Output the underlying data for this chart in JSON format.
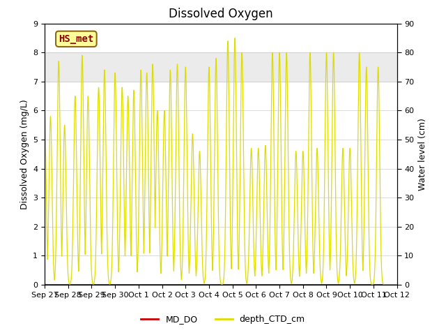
{
  "title": "Dissolved Oxygen",
  "ylabel_left": "Dissolved Oxygen (mg/L)",
  "ylabel_right": "Water level (cm)",
  "ylim_left": [
    0.0,
    9.0
  ],
  "ylim_right": [
    0,
    90
  ],
  "yticks_left": [
    0.0,
    1.0,
    2.0,
    3.0,
    4.0,
    5.0,
    6.0,
    7.0,
    8.0,
    9.0
  ],
  "yticks_right": [
    0,
    10,
    20,
    30,
    40,
    50,
    60,
    70,
    80,
    90
  ],
  "shade_band_low": 7.0,
  "shade_band_high": 8.0,
  "band_color": "#d8d8d8",
  "band_alpha": 0.5,
  "line_color_do": "#cc0000",
  "line_color_depth": "#dddd00",
  "legend_label_do": "MD_DO",
  "legend_label_depth": "depth_CTD_cm",
  "annotation_text": "HS_met",
  "annotation_color": "#8b0000",
  "annotation_bg": "#ffff99",
  "annotation_border": "#8b6914",
  "title_fontsize": 12,
  "axis_label_fontsize": 9,
  "tick_fontsize": 8,
  "figsize": [
    6.4,
    4.8
  ],
  "dpi": 100,
  "tick_labels": [
    "Sep 27",
    "Sep 28",
    "Sep 29",
    "Sep 30",
    "Oct 1",
    "Oct 2",
    "Oct 3",
    "Oct 4",
    "Oct 5",
    "Oct 6",
    "Oct 7",
    "Oct 8",
    "Oct 9",
    "Oct 10",
    "Oct 11",
    "Oct 12"
  ]
}
